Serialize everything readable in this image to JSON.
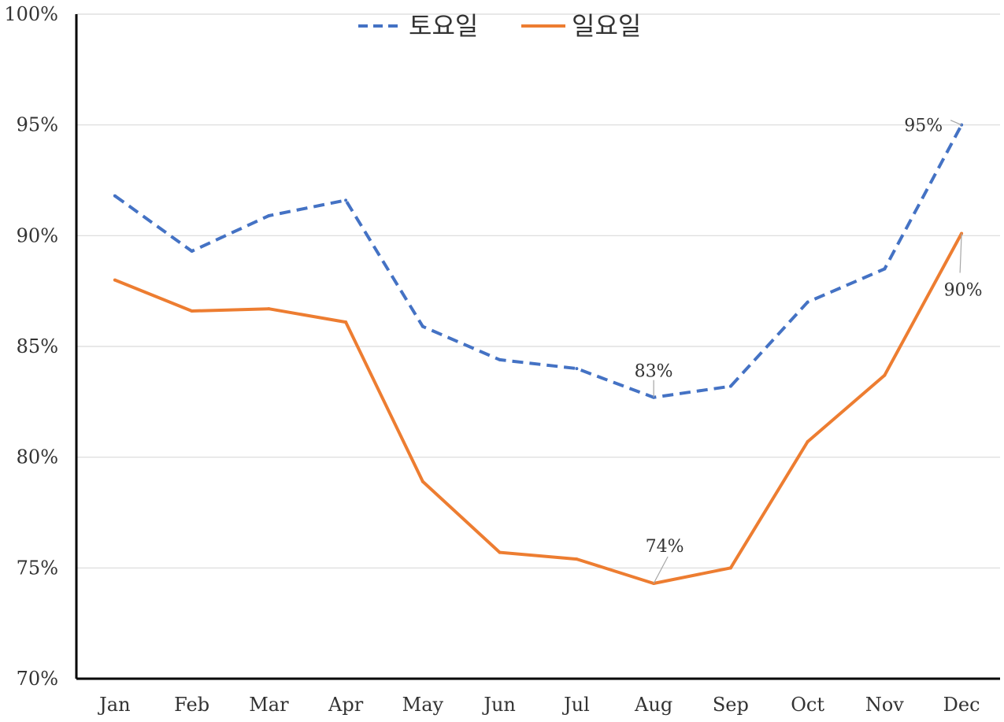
{
  "chart_data": {
    "type": "line",
    "categories": [
      "Jan",
      "Feb",
      "Mar",
      "Apr",
      "May",
      "Jun",
      "Jul",
      "Aug",
      "Sep",
      "Oct",
      "Nov",
      "Dec"
    ],
    "series": [
      {
        "name": "토요일",
        "color": "#4472C4",
        "dashed": true,
        "values": [
          91.8,
          89.3,
          90.9,
          91.6,
          85.9,
          84.4,
          84.0,
          82.7,
          83.2,
          87.0,
          88.5,
          95.0
        ]
      },
      {
        "name": "일요일",
        "color": "#ED7D31",
        "dashed": false,
        "values": [
          88.0,
          86.6,
          86.7,
          86.1,
          78.9,
          75.7,
          75.4,
          74.3,
          75.0,
          80.7,
          83.7,
          90.1
        ]
      }
    ],
    "y_ticks": [
      "70%",
      "75%",
      "80%",
      "85%",
      "90%",
      "95%",
      "100%"
    ],
    "ylim": [
      70,
      100
    ],
    "y_unit": "%",
    "grid": "horizontal",
    "legend_position": "top-center",
    "data_labels": [
      {
        "series": 0,
        "index": 7,
        "text": "83%"
      },
      {
        "series": 1,
        "index": 7,
        "text": "74%"
      },
      {
        "series": 0,
        "index": 11,
        "text": "95%"
      },
      {
        "series": 1,
        "index": 11,
        "text": "90%"
      }
    ]
  }
}
